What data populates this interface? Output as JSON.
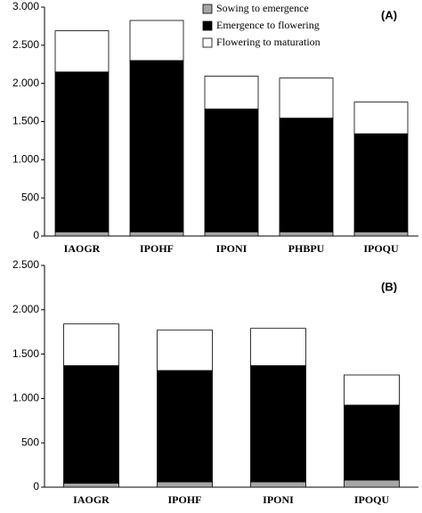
{
  "chart_data": [
    {
      "type": "stacked_bar",
      "annotation": "(A)",
      "legend": true,
      "legend_position": "upper right",
      "categories": [
        "IAOGR",
        "IPOHF",
        "IPONI",
        "PHBPU",
        "IPOQU"
      ],
      "series": [
        {
          "name": "Sowing to emergence",
          "color": "#a6a6a6",
          "values": [
            55,
            55,
            55,
            55,
            55
          ]
        },
        {
          "name": "Emergence to flowering",
          "color": "#000000",
          "values": [
            2095,
            2245,
            1610,
            1490,
            1285
          ]
        },
        {
          "name": "Flowering to maturation",
          "color": "#ffffff",
          "values": [
            540,
            525,
            430,
            525,
            415
          ]
        }
      ],
      "ylim": [
        0,
        3000
      ],
      "yticks": [
        0,
        500,
        {
          "value": 1000,
          "label": "1.000"
        },
        {
          "value": 1500,
          "label": "1.500"
        },
        {
          "value": 2000,
          "label": "2.000"
        },
        {
          "value": 2500,
          "label": "2.500"
        },
        {
          "value": 3000,
          "label": "3.000"
        }
      ]
    },
    {
      "type": "stacked_bar",
      "annotation": "(B)",
      "legend": false,
      "categories": [
        "IAOGR",
        "IPOHF",
        "IPONI",
        "IPOQU"
      ],
      "series": [
        {
          "color": "#a6a6a6",
          "values": [
            45,
            60,
            60,
            80
          ]
        },
        {
          "color": "#000000",
          "values": [
            1325,
            1255,
            1310,
            845
          ]
        },
        {
          "color": "#ffffff",
          "values": [
            470,
            455,
            420,
            340
          ]
        }
      ],
      "ylim": [
        0,
        2500
      ],
      "yticks": [
        0,
        500,
        {
          "value": 1000,
          "label": "1.000"
        },
        {
          "value": 1500,
          "label": "1.500"
        },
        {
          "value": 2000,
          "label": "2.000"
        },
        {
          "value": 2500,
          "label": "2.500"
        }
      ]
    }
  ]
}
